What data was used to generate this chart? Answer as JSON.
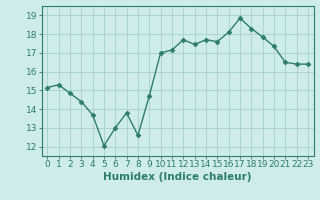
{
  "x": [
    0,
    1,
    2,
    3,
    4,
    5,
    6,
    7,
    8,
    9,
    10,
    11,
    12,
    13,
    14,
    15,
    16,
    17,
    18,
    19,
    20,
    21,
    22,
    23
  ],
  "y": [
    15.15,
    15.3,
    14.85,
    14.4,
    13.7,
    12.05,
    13.0,
    13.8,
    12.6,
    14.7,
    17.0,
    17.15,
    17.7,
    17.45,
    17.7,
    17.6,
    18.1,
    18.85,
    18.3,
    17.85,
    17.35,
    16.5,
    16.4,
    16.4
  ],
  "line_color": "#2d7d6e",
  "marker": "D",
  "marker_size": 2.5,
  "bg_color": "#ceecea",
  "grid_color": "#aed4d0",
  "xlabel": "Humidex (Indice chaleur)",
  "ylim": [
    11.5,
    19.5
  ],
  "xlim": [
    -0.5,
    23.5
  ],
  "yticks": [
    12,
    13,
    14,
    15,
    16,
    17,
    18,
    19
  ],
  "xticks": [
    0,
    1,
    2,
    3,
    4,
    5,
    6,
    7,
    8,
    9,
    10,
    11,
    12,
    13,
    14,
    15,
    16,
    17,
    18,
    19,
    20,
    21,
    22,
    23
  ],
  "tick_color": "#2d7d6e",
  "label_fontsize": 6.5,
  "xlabel_fontsize": 7.5,
  "axis_color": "#2d7d6e",
  "linewidth": 1.0
}
